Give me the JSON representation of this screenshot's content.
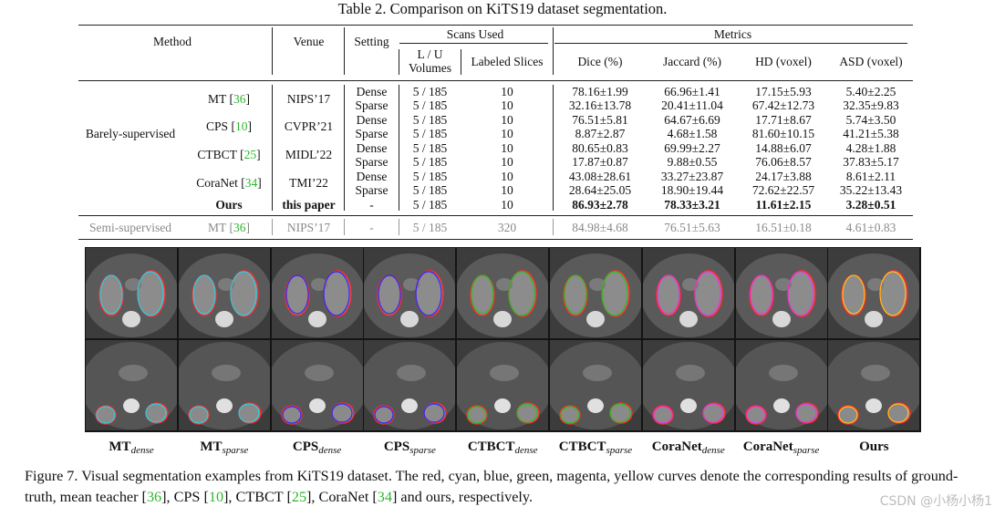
{
  "table": {
    "caption": "Table 2. Comparison on KiTS19 dataset segmentation.",
    "headers": {
      "method": "Method",
      "venue": "Venue",
      "setting": "Setting",
      "scans_used": "Scans Used",
      "lu_volumes_line1": "L / U",
      "lu_volumes_line2": "Volumes",
      "labeled_slices": "Labeled Slices",
      "metrics": "Metrics",
      "dice": "Dice (%)",
      "jaccard": "Jaccard (%)",
      "hd": "HD (voxel)",
      "asd": "ASD (voxel)"
    },
    "group_barely": "Barely-supervised",
    "methods": [
      {
        "name": "MT",
        "ref": "36",
        "venue": "NIPS’17"
      },
      {
        "name": "CPS",
        "ref": "10",
        "venue": "CVPR’21"
      },
      {
        "name": "CTBCT",
        "ref": "25",
        "venue": "MIDL’22"
      },
      {
        "name": "CoraNet",
        "ref": "34",
        "venue": "TMI’22"
      }
    ],
    "ours": {
      "name": "Ours",
      "venue": "this paper",
      "setting": "-",
      "lu": "5 / 185",
      "slices": "10",
      "dice": "86.93±2.78",
      "jaccard": "78.33±3.21",
      "hd": "11.61±2.15",
      "asd": "3.28±0.51"
    },
    "rows": [
      {
        "setting": "Dense",
        "lu": "5 / 185",
        "slices": "10",
        "dice": "78.16±1.99",
        "jaccard": "66.96±1.41",
        "hd": "17.15±5.93",
        "asd": "5.40±2.25"
      },
      {
        "setting": "Sparse",
        "lu": "5 / 185",
        "slices": "10",
        "dice": "32.16±13.78",
        "jaccard": "20.41±11.04",
        "hd": "67.42±12.73",
        "asd": "32.35±9.83"
      },
      {
        "setting": "Dense",
        "lu": "5 / 185",
        "slices": "10",
        "dice": "76.51±5.81",
        "jaccard": "64.67±6.69",
        "hd": "17.71±8.67",
        "asd": "5.74±3.50"
      },
      {
        "setting": "Sparse",
        "lu": "5 / 185",
        "slices": "10",
        "dice": "8.87±2.87",
        "jaccard": "4.68±1.58",
        "hd": "81.60±10.15",
        "asd": "41.21±5.38"
      },
      {
        "setting": "Dense",
        "lu": "5 / 185",
        "slices": "10",
        "dice": "80.65±0.83",
        "jaccard": "69.99±2.27",
        "hd": "14.88±6.07",
        "asd": "4.28±1.88"
      },
      {
        "setting": "Sparse",
        "lu": "5 / 185",
        "slices": "10",
        "dice": "17.87±0.87",
        "jaccard": "9.88±0.55",
        "hd": "76.06±8.57",
        "asd": "37.83±5.17"
      },
      {
        "setting": "Dense",
        "lu": "5 / 185",
        "slices": "10",
        "dice": "43.08±28.61",
        "jaccard": "33.27±23.87",
        "hd": "24.17±3.88",
        "asd": "8.61±2.11"
      },
      {
        "setting": "Sparse",
        "lu": "5 / 185",
        "slices": "10",
        "dice": "28.64±25.05",
        "jaccard": "18.90±19.44",
        "hd": "72.62±22.57",
        "asd": "35.22±13.43"
      }
    ],
    "semi": {
      "group": "Semi-supervised",
      "method": "MT",
      "ref": "36",
      "venue": "NIPS’17",
      "setting": "-",
      "lu": "5 / 185",
      "slices": "320",
      "dice": "84.98±4.68",
      "jaccard": "76.51±5.63",
      "hd": "16.51±0.18",
      "asd": "4.61±0.83"
    }
  },
  "figure": {
    "column_labels": [
      {
        "base": "MT",
        "sub": "dense"
      },
      {
        "base": "MT",
        "sub": "sparse"
      },
      {
        "base": "CPS",
        "sub": "dense"
      },
      {
        "base": "CPS",
        "sub": "sparse"
      },
      {
        "base": "CTBCT",
        "sub": "dense"
      },
      {
        "base": "CTBCT",
        "sub": "sparse"
      },
      {
        "base": "CoraNet",
        "sub": "dense"
      },
      {
        "base": "CoraNet",
        "sub": "sparse"
      },
      {
        "base": "Ours",
        "sub": ""
      }
    ],
    "curve_colors": [
      "#22d3e6",
      "#22d3e6",
      "#2b2bff",
      "#2b2bff",
      "#22c322",
      "#22c322",
      "#e13ae6",
      "#e13ae6",
      "#ffc21a"
    ],
    "ground_truth_color": "#ff2a2a",
    "caption_parts": [
      "Figure 7. Visual segmentation examples from KiTS19 dataset. The red, cyan, blue, green, magenta, yellow curves denote the corresponding results of ground-truth, mean teacher [",
      "36",
      "], CPS [",
      "10",
      "], CTBCT [",
      "25",
      "], CoraNet [",
      "34",
      "] and ours, respectively."
    ]
  },
  "watermark": "CSDN @小杨小杨1"
}
